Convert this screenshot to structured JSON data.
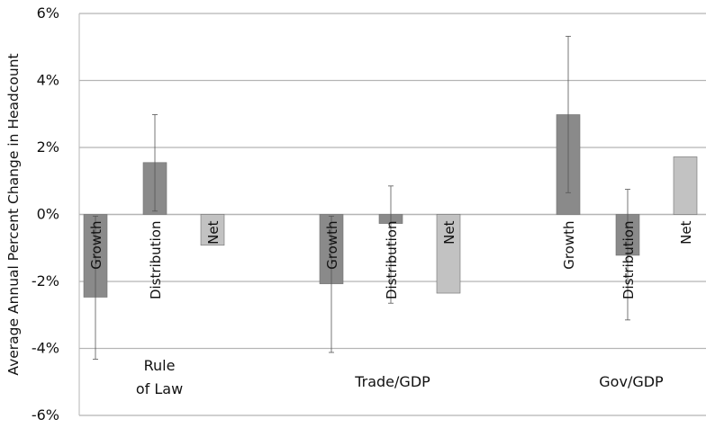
{
  "chart_data": {
    "type": "bar",
    "title": "",
    "xlabel": "",
    "ylabel": "Average Annual Percent Change in Headcount",
    "ylim": [
      -6,
      6
    ],
    "yticks": [
      6,
      4,
      2,
      0,
      -2,
      -4,
      -6
    ],
    "ytick_labels": [
      "6%",
      "4%",
      "2%",
      "0%",
      "-2%",
      "-4%",
      "-6%"
    ],
    "grid": true,
    "legend": "none",
    "colors": {
      "Growth": "#8a8a8a",
      "Distribution": "#8a8a8a",
      "Net": "#c2c2c2",
      "gridline": "#b5b5b5",
      "errorbar": "#555555"
    },
    "groups": [
      {
        "label": "Rule\nof Law",
        "bars": [
          {
            "name": "Growth",
            "value": -2.47,
            "err_low": -4.32,
            "err_high": -0.05
          },
          {
            "name": "Distribution",
            "value": 1.55,
            "err_low": 0.1,
            "err_high": 2.98
          },
          {
            "name": "Net",
            "value": -0.92,
            "err_low": null,
            "err_high": null
          }
        ]
      },
      {
        "label": "Trade/GDP",
        "bars": [
          {
            "name": "Growth",
            "value": -2.07,
            "err_low": -4.12,
            "err_high": -0.05
          },
          {
            "name": "Distribution",
            "value": -0.27,
            "err_low": -2.65,
            "err_high": 0.85
          },
          {
            "name": "Net",
            "value": -2.35,
            "err_low": null,
            "err_high": null
          }
        ]
      },
      {
        "label": "Gov/GDP",
        "bars": [
          {
            "name": "Growth",
            "value": 2.98,
            "err_low": 0.65,
            "err_high": 5.32
          },
          {
            "name": "Distribution",
            "value": -1.22,
            "err_low": -3.15,
            "err_high": 0.75
          },
          {
            "name": "Net",
            "value": 1.72,
            "err_low": null,
            "err_high": null
          }
        ]
      }
    ]
  }
}
